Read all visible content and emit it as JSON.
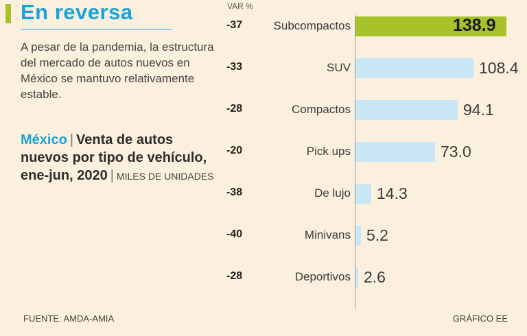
{
  "header": {
    "title": "En reversa",
    "description": "A pesar de la pandemia, la estructura del mercado de autos nuevos en México se mantuvo relativamente estable."
  },
  "subtitle": {
    "country": "México",
    "text": "Venta de autos nuevos por tipo de vehículo, ene-jun, 2020",
    "units": "MILES DE UNIDADES"
  },
  "var_header": "VAR %",
  "footer": {
    "source": "FUENTE: AMDA-AMIA",
    "credit": "GRÁFICO EE"
  },
  "colors": {
    "title": "#1aa3d8",
    "highlight": "#a8c32a",
    "bar": "#c9e6f6",
    "background": "#fbf0dd"
  },
  "chart_data": {
    "type": "bar",
    "orientation": "horizontal",
    "title": "Venta de autos nuevos por tipo de vehículo, ene-jun, 2020",
    "ylabel": "MILES DE UNIDADES",
    "categories": [
      "Subcompactos",
      "SUV",
      "Compactos",
      "Pick ups",
      "De lujo",
      "Minivans",
      "Deportivos"
    ],
    "values": [
      138.9,
      108.4,
      94.1,
      73.0,
      14.3,
      5.2,
      2.6
    ],
    "value_labels": [
      "138.9",
      "108.4",
      "94.1",
      "73.0",
      "14.3",
      "5.2",
      "2.6"
    ],
    "var_pct": [
      "-37",
      "-33",
      "-28",
      "-20",
      "-38",
      "-40",
      "-28"
    ],
    "xlim": [
      0,
      138.9
    ],
    "highlight_index": 0
  }
}
